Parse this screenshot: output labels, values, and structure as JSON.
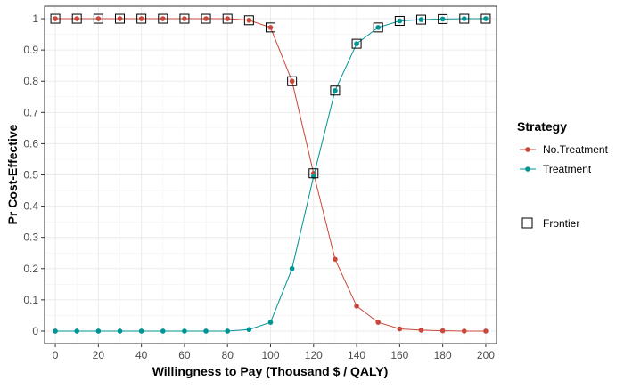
{
  "chart_data": {
    "type": "line",
    "title": "",
    "xlabel": "Willingness to Pay (Thousand $ / QALY)",
    "ylabel": "Pr Cost-Effective",
    "xlim": [
      -5,
      205
    ],
    "ylim": [
      -0.04,
      1.04
    ],
    "xticks": [
      0,
      20,
      40,
      60,
      80,
      100,
      120,
      140,
      160,
      180,
      200
    ],
    "yticks": [
      0,
      0.1,
      0.2,
      0.3,
      0.4,
      0.5,
      0.6,
      0.7,
      0.8,
      0.9,
      1
    ],
    "grid": true,
    "legend_position": "right",
    "legend_title": "Strategy",
    "x": [
      0,
      10,
      20,
      30,
      40,
      50,
      60,
      70,
      80,
      90,
      100,
      110,
      120,
      130,
      140,
      150,
      160,
      170,
      180,
      190,
      200
    ],
    "series": [
      {
        "name": "No.Treatment",
        "color": "#c9473b",
        "values": [
          1,
          1,
          1,
          1,
          1,
          1,
          1,
          1,
          1,
          0.995,
          0.972,
          0.8,
          0.505,
          0.23,
          0.08,
          0.028,
          0.007,
          0.003,
          0.001,
          0,
          0
        ]
      },
      {
        "name": "Treatment",
        "color": "#009393",
        "values": [
          0,
          0,
          0,
          0,
          0,
          0,
          0,
          0,
          0,
          0.005,
          0.028,
          0.2,
          0.495,
          0.77,
          0.92,
          0.972,
          0.993,
          0.997,
          0.999,
          1,
          1
        ]
      }
    ],
    "frontier": {
      "label": "Frontier",
      "points": [
        [
          0,
          1
        ],
        [
          10,
          1
        ],
        [
          20,
          1
        ],
        [
          30,
          1
        ],
        [
          40,
          1
        ],
        [
          50,
          1
        ],
        [
          60,
          1
        ],
        [
          70,
          1
        ],
        [
          80,
          1
        ],
        [
          90,
          0.995
        ],
        [
          100,
          0.972
        ],
        [
          110,
          0.8
        ],
        [
          120,
          0.505
        ],
        [
          130,
          0.77
        ],
        [
          140,
          0.92
        ],
        [
          150,
          0.972
        ],
        [
          160,
          0.993
        ],
        [
          170,
          0.997
        ],
        [
          180,
          0.999
        ],
        [
          190,
          1
        ],
        [
          200,
          1
        ]
      ]
    }
  }
}
